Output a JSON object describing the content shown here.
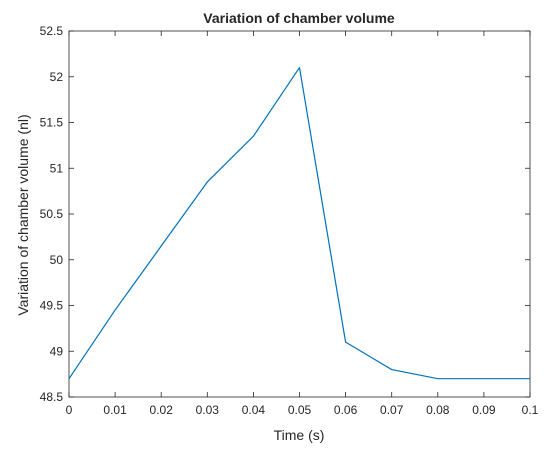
{
  "chart_data": {
    "type": "line",
    "title": "Variation of chamber volume",
    "xlabel": "Time (s)",
    "ylabel": "Variation of chamber volume (nl)",
    "xlim": [
      0,
      0.1
    ],
    "ylim": [
      48.5,
      52.5
    ],
    "x_ticks": [
      "0",
      "0.01",
      "0.02",
      "0.03",
      "0.04",
      "0.05",
      "0.06",
      "0.07",
      "0.08",
      "0.09",
      "0.1"
    ],
    "y_ticks": [
      "48.5",
      "49",
      "49.5",
      "50",
      "50.5",
      "51",
      "51.5",
      "52",
      "52.5"
    ],
    "grid": false,
    "legend": "none",
    "series": [
      {
        "color": "#0072bd",
        "x": [
          0,
          0.01,
          0.02,
          0.03,
          0.04,
          0.05,
          0.06,
          0.07,
          0.08,
          0.09,
          0.1
        ],
        "y": [
          48.7,
          49.45,
          50.15,
          50.85,
          51.35,
          52.1,
          49.1,
          48.8,
          48.7,
          48.7,
          48.7
        ]
      }
    ]
  }
}
